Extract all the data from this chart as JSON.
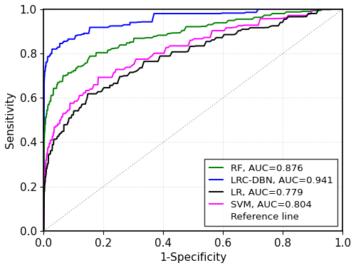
{
  "title": "",
  "xlabel": "1-Specificity",
  "ylabel": "Sensitivity",
  "xlim": [
    0.0,
    1.0
  ],
  "ylim": [
    0.0,
    1.0
  ],
  "legend_entries": [
    "RF, AUC=0.876",
    "LRC-DBN, AUC=0.941",
    "LR, AUC=0.779",
    "SVM, AUC=0.804",
    "Reference line"
  ],
  "colors": {
    "RF": "#008000",
    "LRC_DBN": "#0000ff",
    "LR": "#000000",
    "SVM": "#ff00ff",
    "ref": "#aaaaaa"
  },
  "auc": {
    "RF": 0.876,
    "LRC_DBN": 0.941,
    "LR": 0.779,
    "SVM": 0.804
  },
  "grid": true,
  "legend_loc": "lower right",
  "font_size": 11
}
